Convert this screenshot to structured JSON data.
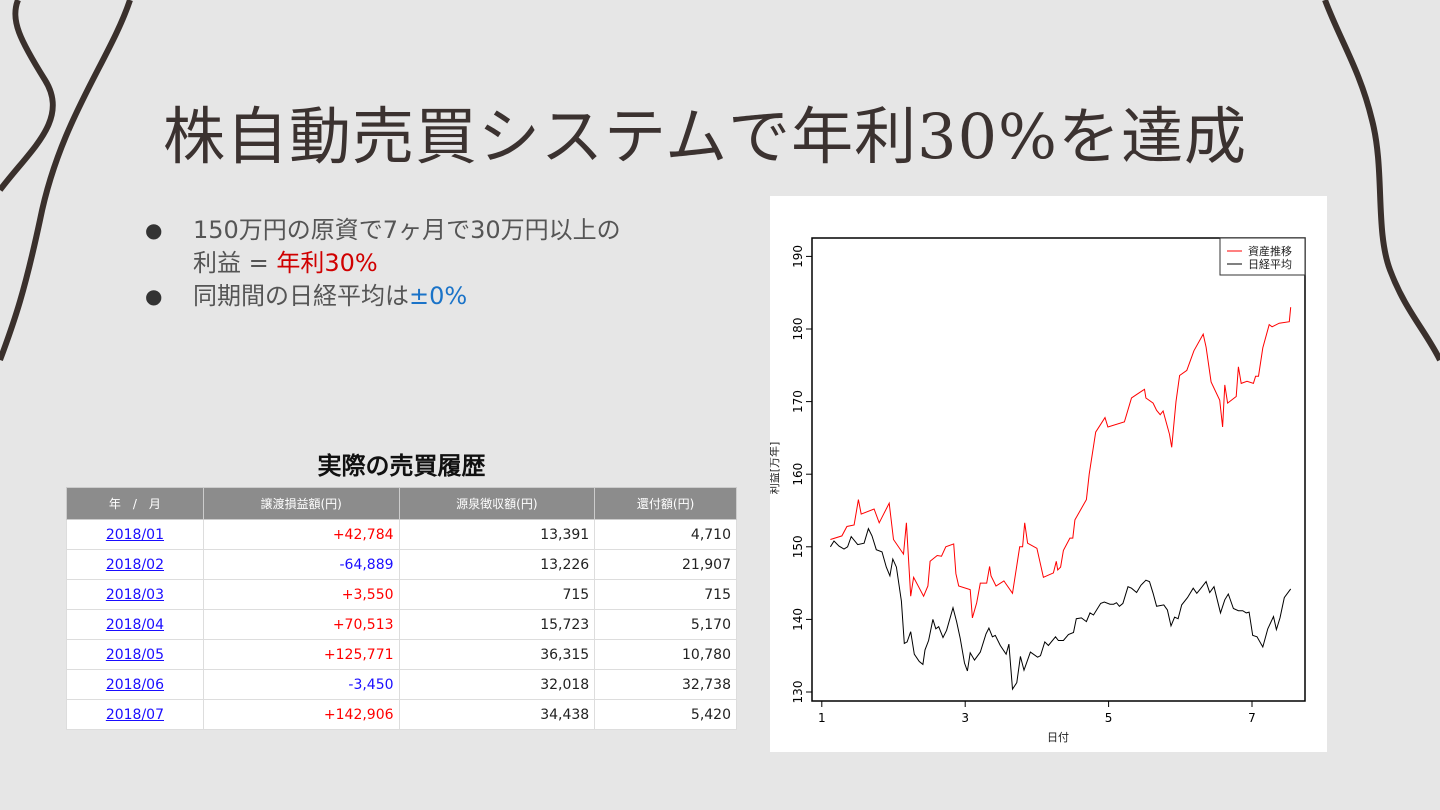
{
  "slide": {
    "title": "株自動売買システムで年利30%を達成",
    "bullets": [
      {
        "text": "150万円の原資で7ヶ月で30万円以上の",
        "line2": "利益 = ",
        "highlight": "年利30%",
        "highlight_color": "#d00000"
      },
      {
        "text": "同期間の日経平均は",
        "highlight": "±0%",
        "highlight_color": "#1a73c8"
      }
    ]
  },
  "table": {
    "title": "実際の売買履歴",
    "headers": [
      "年　/　月",
      "譲渡損益額(円)",
      "源泉徴収額(円)",
      "還付額(円)"
    ],
    "rows": [
      [
        "2018/01",
        "+42,784",
        "13,391",
        "4,710"
      ],
      [
        "2018/02",
        "-64,889",
        "13,226",
        "21,907"
      ],
      [
        "2018/03",
        "+3,550",
        "715",
        "715"
      ],
      [
        "2018/04",
        "+70,513",
        "15,723",
        "5,170"
      ],
      [
        "2018/05",
        "+125,771",
        "36,315",
        "10,780"
      ],
      [
        "2018/06",
        "-3,450",
        "32,018",
        "32,738"
      ],
      [
        "2018/07",
        "+142,906",
        "34,438",
        "5,420"
      ]
    ],
    "colors": {
      "positive": "#ff0000",
      "negative": "#1a0dff",
      "link": "#1a0dff",
      "header_bg": "#8c8c8c"
    }
  },
  "chart_data": {
    "type": "line",
    "xlabel": "日付",
    "ylabel": "利益[万年]",
    "xlim": [
      0.85,
      7.8
    ],
    "ylim": [
      127.5,
      193
    ],
    "xticks": [
      1,
      3,
      5,
      7
    ],
    "yticks": [
      130,
      140,
      150,
      160,
      170,
      180,
      190
    ],
    "grid": false,
    "legend_position": "top-right",
    "series": [
      {
        "name": "資産推移",
        "color": "#ff0000",
        "x": [
          1.12,
          1.28,
          1.35,
          1.45,
          1.51,
          1.55,
          1.73,
          1.8,
          1.94,
          2.0,
          2.14,
          2.18,
          2.24,
          2.28,
          2.42,
          2.48,
          2.51,
          2.61,
          2.67,
          2.73,
          2.84,
          2.87,
          2.91,
          3.07,
          3.1,
          3.16,
          3.21,
          3.3,
          3.34,
          3.36,
          3.43,
          3.54,
          3.66,
          3.76,
          3.8,
          3.83,
          3.87,
          4.0,
          4.09,
          4.23,
          4.27,
          4.29,
          4.33,
          4.37,
          4.46,
          4.5,
          4.53,
          4.69,
          4.73,
          4.82,
          4.95,
          4.99,
          5.22,
          5.32,
          5.38,
          5.5,
          5.52,
          5.62,
          5.67,
          5.72,
          5.76,
          5.85,
          5.88,
          5.94,
          5.99,
          6.09,
          6.19,
          6.32,
          6.36,
          6.43,
          6.55,
          6.59,
          6.62,
          6.66,
          6.78,
          6.81,
          6.85,
          6.93,
          7.02,
          7.05,
          7.09,
          7.15,
          7.24,
          7.28,
          7.38,
          7.52,
          7.54
        ],
        "y": [
          151,
          151.5,
          152.8,
          153,
          156.5,
          154.5,
          155.2,
          153.3,
          156,
          151,
          149,
          153.3,
          143.2,
          145.8,
          143.2,
          144.6,
          148,
          148.8,
          148.7,
          150,
          150.4,
          146.3,
          144.6,
          144.1,
          140.2,
          142.3,
          145,
          145,
          147.3,
          146,
          144.6,
          145.3,
          143.6,
          150,
          150,
          153.3,
          150.5,
          149.8,
          145.8,
          146.4,
          148,
          146.8,
          147.2,
          149.5,
          151.2,
          151.2,
          153.7,
          156.5,
          160,
          165.8,
          167.8,
          166.5,
          167.2,
          170.5,
          170.9,
          171.7,
          170.5,
          169.8,
          168.8,
          168.2,
          168.7,
          165.5,
          163.7,
          170,
          173.6,
          174.3,
          177,
          179.3,
          177.5,
          172.7,
          170.2,
          166.5,
          172.3,
          169.8,
          170.7,
          174.8,
          172.5,
          172.8,
          172.5,
          173.5,
          173.5,
          177.4,
          180.6,
          180.3,
          180.8,
          181,
          183
        ]
      },
      {
        "name": "日経平均",
        "color": "#000000",
        "x": [
          1.12,
          1.17,
          1.24,
          1.31,
          1.36,
          1.41,
          1.5,
          1.59,
          1.65,
          1.7,
          1.76,
          1.84,
          1.9,
          1.95,
          1.99,
          2.04,
          2.11,
          2.15,
          2.19,
          2.24,
          2.29,
          2.36,
          2.41,
          2.44,
          2.49,
          2.55,
          2.59,
          2.63,
          2.69,
          2.74,
          2.83,
          2.88,
          2.93,
          2.99,
          3.03,
          3.07,
          3.13,
          3.21,
          3.29,
          3.33,
          3.38,
          3.42,
          3.49,
          3.57,
          3.61,
          3.66,
          3.72,
          3.77,
          3.82,
          3.91,
          4.01,
          4.05,
          4.11,
          4.16,
          4.26,
          4.3,
          4.37,
          4.44,
          4.51,
          4.55,
          4.62,
          4.69,
          4.74,
          4.79,
          4.89,
          4.94,
          5.02,
          5.07,
          5.11,
          5.15,
          5.2,
          5.27,
          5.32,
          5.39,
          5.45,
          5.52,
          5.57,
          5.62,
          5.67,
          5.77,
          5.82,
          5.87,
          5.92,
          5.97,
          6.02,
          6.1,
          6.18,
          6.23,
          6.28,
          6.36,
          6.41,
          6.47,
          6.56,
          6.62,
          6.67,
          6.74,
          6.81,
          6.87,
          6.92,
          6.96,
          7.01,
          7.07,
          7.15,
          7.22,
          7.3,
          7.34,
          7.39,
          7.45,
          7.54
        ],
        "y": [
          150,
          150.8,
          150.1,
          149.7,
          150,
          151.4,
          150.3,
          150.5,
          152.5,
          151.5,
          149.6,
          149.3,
          147.2,
          146,
          148.3,
          147.2,
          142.5,
          136.7,
          136.9,
          138.3,
          135.2,
          134.2,
          133.8,
          135.8,
          137.1,
          140,
          138.7,
          139,
          137.5,
          138.5,
          141.6,
          139.7,
          137.4,
          134,
          132.9,
          135.4,
          134.4,
          135.5,
          138,
          138.8,
          137.6,
          137.8,
          136.4,
          135.2,
          136.6,
          130.4,
          131.3,
          134.9,
          133,
          135.5,
          134.8,
          135,
          136.9,
          136.4,
          137.6,
          137.1,
          137.1,
          137.9,
          138.2,
          140.1,
          140.2,
          139.7,
          140.9,
          140.6,
          142.2,
          142.4,
          142.1,
          142.1,
          142.3,
          141.8,
          142.2,
          144.5,
          144.3,
          143.7,
          144.7,
          145.4,
          145.2,
          143.6,
          141.8,
          142,
          141.3,
          139.1,
          140.3,
          140.1,
          142,
          143,
          144.3,
          143.6,
          144.2,
          145.2,
          143.7,
          144.5,
          140.9,
          142.7,
          143.5,
          141.5,
          141.2,
          141.2,
          140.9,
          141,
          137.8,
          137.6,
          136.2,
          138.7,
          140.4,
          138.6,
          140.2,
          143,
          144.2
        ]
      }
    ]
  }
}
